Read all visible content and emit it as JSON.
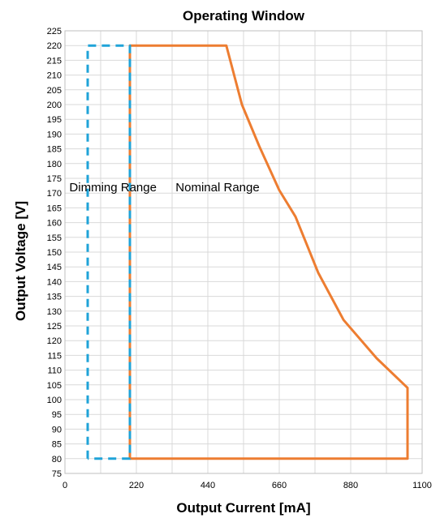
{
  "chart_data": {
    "type": "line",
    "title": "Operating Window",
    "xlabel": "Output Current [mA]",
    "ylabel": "Output Voltage [V]",
    "xlim": [
      0,
      1100
    ],
    "ylim": [
      75,
      225
    ],
    "x_ticks": [
      0,
      220,
      440,
      660,
      880,
      1100
    ],
    "y_ticks": [
      75,
      80,
      85,
      90,
      95,
      100,
      105,
      110,
      115,
      120,
      125,
      130,
      135,
      140,
      145,
      150,
      155,
      160,
      165,
      170,
      175,
      180,
      185,
      190,
      195,
      200,
      205,
      210,
      215,
      220,
      225
    ],
    "grid": true,
    "series": [
      {
        "name": "Nominal Range",
        "color": "#ED7D31",
        "style": "solid",
        "points": [
          [
            200,
            80
          ],
          [
            200,
            220
          ],
          [
            497,
            220
          ],
          [
            545,
            200
          ],
          [
            598,
            186
          ],
          [
            660,
            171
          ],
          [
            710,
            162
          ],
          [
            780,
            143
          ],
          [
            858,
            127
          ],
          [
            960,
            114
          ],
          [
            1055,
            104
          ],
          [
            1055,
            80
          ],
          [
            200,
            80
          ]
        ]
      },
      {
        "name": "Dimming Range",
        "color": "#1FA3D8",
        "style": "dashed",
        "points": [
          [
            70,
            80
          ],
          [
            70,
            220
          ],
          [
            200,
            220
          ],
          [
            200,
            80
          ],
          [
            70,
            80
          ]
        ]
      }
    ],
    "annotations": [
      {
        "text": "Dimming Range",
        "x": 148,
        "y": 172
      },
      {
        "text": "Nominal Range",
        "x": 470,
        "y": 172
      }
    ]
  }
}
